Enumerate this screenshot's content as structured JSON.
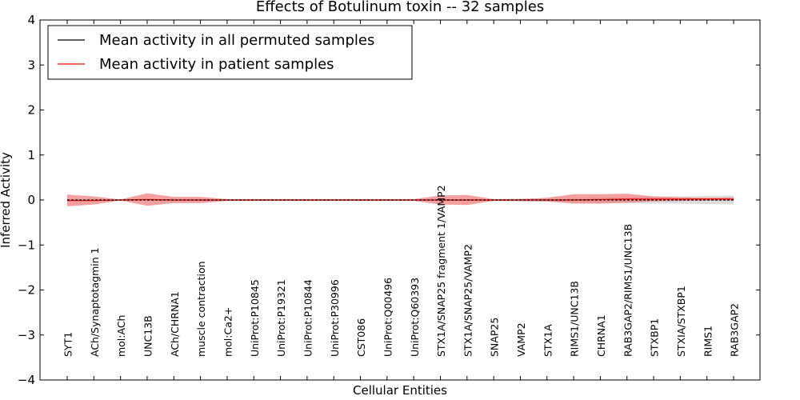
{
  "chart_data": {
    "type": "line",
    "title": "Effects of Botulinum toxin -- 32 samples",
    "xlabel": "Cellular Entities",
    "ylabel": "Inferred Activity",
    "ylim": [
      -4,
      4
    ],
    "yticks": [
      "−4",
      "−3",
      "−2",
      "−1",
      "0",
      "1",
      "2",
      "3",
      "4"
    ],
    "ytick_values": [
      -4,
      -3,
      -2,
      -1,
      0,
      1,
      2,
      3,
      4
    ],
    "categories": [
      "SYT1",
      "ACh/Synaptotagmin 1",
      "mol:ACh",
      "UNC13B",
      "ACh/CHRNA1",
      "muscle contraction",
      "mol:Ca2+",
      "UniProt:P10845",
      "UniProt:P19321",
      "UniProt:P10844",
      "UniProt:P30996",
      "CST086",
      "UniProt:Q00496",
      "UniProt:Q60393",
      "STX1A/SNAP25 fragment 1/VAMP2",
      "STX1A/SNAP25/VAMP2",
      "SNAP25",
      "VAMP2",
      "STX1A",
      "RIMS1/UNC13B",
      "CHRNA1",
      "RAB3GAP2/RIMS1/UNC13B",
      "STXBP1",
      "STXIA/STXBP1",
      "RIMS1",
      "RAB3GAP2"
    ],
    "legend_position": "top-left",
    "grid": false,
    "series": [
      {
        "name": "Mean activity in all permuted samples",
        "color": "#000000",
        "values": [
          0.0,
          0.0,
          0.0,
          0.0,
          0.0,
          0.0,
          0.0,
          0.0,
          0.0,
          0.0,
          0.0,
          0.0,
          0.0,
          0.0,
          0.0,
          0.0,
          0.0,
          0.0,
          0.0,
          0.0,
          0.0,
          0.0,
          0.0,
          0.0,
          0.0,
          0.0
        ],
        "band_upper": [
          0.02,
          0.02,
          0.02,
          0.02,
          0.02,
          0.02,
          0.01,
          0.01,
          0.01,
          0.01,
          0.01,
          0.01,
          0.01,
          0.01,
          0.02,
          0.02,
          0.02,
          0.03,
          0.04,
          0.05,
          0.06,
          0.07,
          0.08,
          0.08,
          0.09,
          0.1
        ],
        "band_lower": [
          -0.02,
          -0.02,
          -0.02,
          -0.02,
          -0.02,
          -0.02,
          -0.01,
          -0.01,
          -0.01,
          -0.01,
          -0.01,
          -0.01,
          -0.01,
          -0.01,
          -0.02,
          -0.02,
          -0.02,
          -0.03,
          -0.04,
          -0.05,
          -0.06,
          -0.07,
          -0.08,
          -0.08,
          -0.09,
          -0.1
        ],
        "band_color": "#bfbfbf"
      },
      {
        "name": "Mean activity in patient samples",
        "color": "#ff0000",
        "values": [
          -0.01,
          -0.01,
          0.0,
          0.01,
          0.0,
          0.0,
          0.0,
          0.0,
          0.0,
          0.0,
          0.0,
          0.0,
          0.0,
          0.0,
          0.0,
          0.0,
          0.0,
          0.0,
          0.0,
          0.0,
          0.01,
          0.02,
          0.02,
          0.02,
          0.02,
          0.02
        ],
        "band_upper": [
          0.12,
          0.08,
          0.01,
          0.15,
          0.07,
          0.07,
          0.02,
          0.02,
          0.02,
          0.02,
          0.02,
          0.02,
          0.02,
          0.02,
          0.1,
          0.11,
          0.02,
          0.02,
          0.05,
          0.13,
          0.13,
          0.14,
          0.08,
          0.06,
          0.05,
          0.06
        ],
        "band_lower": [
          -0.14,
          -0.1,
          -0.01,
          -0.13,
          -0.07,
          -0.07,
          -0.02,
          -0.02,
          -0.02,
          -0.02,
          -0.02,
          -0.02,
          -0.02,
          -0.02,
          -0.1,
          -0.11,
          -0.02,
          -0.02,
          -0.03,
          -0.08,
          -0.08,
          -0.06,
          -0.03,
          -0.02,
          -0.01,
          -0.01
        ],
        "band_color": "#f08080"
      }
    ]
  }
}
